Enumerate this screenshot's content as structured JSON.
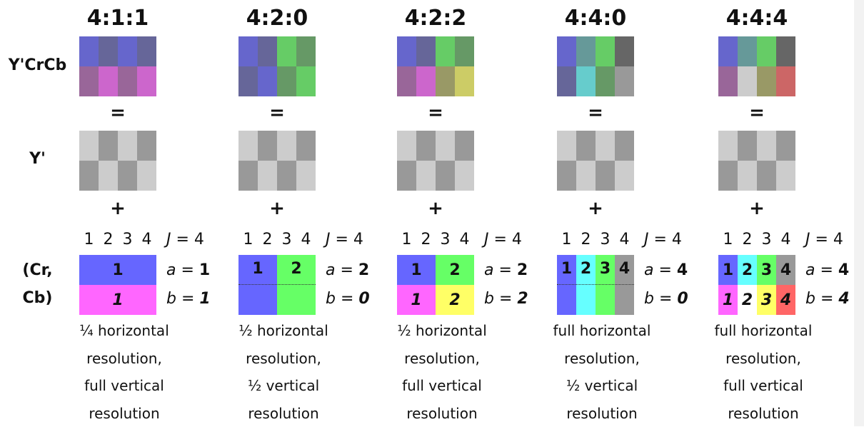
{
  "row_labels": {
    "ycrcb": "Y'CrCb",
    "y": "Y'",
    "crcb_line1": "(Cr,",
    "crcb_line2": "Cb)"
  },
  "symbols": {
    "equals": "=",
    "plus": "+"
  },
  "column_numbers": [
    "1",
    "2",
    "3",
    "4"
  ],
  "labels": {
    "J": "J",
    "a": "a",
    "b": "b",
    "eq": " = "
  },
  "colors": {
    "luma_light": "#cccccc",
    "luma_dark": "#999999",
    "luma_pattern": [
      "light",
      "dark",
      "light",
      "dark",
      "dark",
      "light",
      "dark",
      "light"
    ]
  },
  "schemes": [
    {
      "title": "4:1:1",
      "ycrcb": [
        "#6666cc",
        "#666699",
        "#6666cc",
        "#666699",
        "#996699",
        "#cc66cc",
        "#996699",
        "#cc66cc"
      ],
      "J": "4",
      "a": "1",
      "b": "1",
      "chroma": [
        {
          "text": "1",
          "color": "#6666ff",
          "italic": false,
          "col": 0,
          "span": 4,
          "row": 0
        },
        {
          "text": "1",
          "color": "#ff66ff",
          "italic": true,
          "col": 0,
          "span": 4,
          "row": 1
        }
      ],
      "dotted": false,
      "caption": [
        "¼ horizontal",
        "resolution,",
        "full vertical",
        "resolution"
      ]
    },
    {
      "title": "4:2:0",
      "ycrcb": [
        "#6666cc",
        "#666699",
        "#66cc66",
        "#669966",
        "#666699",
        "#6666cc",
        "#669966",
        "#66cc66"
      ],
      "J": "4",
      "a": "2",
      "b": "0",
      "chroma": [
        {
          "text": "1",
          "color": "#6666ff",
          "italic": false,
          "col": 0,
          "span": 2,
          "row": "both"
        },
        {
          "text": "2",
          "color": "#66ff66",
          "italic": false,
          "col": 2,
          "span": 2,
          "row": "both"
        }
      ],
      "dotted": true,
      "caption": [
        "½ horizontal",
        "resolution,",
        "½ vertical",
        "resolution"
      ]
    },
    {
      "title": "4:2:2",
      "ycrcb": [
        "#6666cc",
        "#666699",
        "#66cc66",
        "#669966",
        "#996699",
        "#cc66cc",
        "#999966",
        "#cccc66"
      ],
      "J": "4",
      "a": "2",
      "b": "2",
      "chroma": [
        {
          "text": "1",
          "color": "#6666ff",
          "italic": false,
          "col": 0,
          "span": 2,
          "row": 0
        },
        {
          "text": "2",
          "color": "#66ff66",
          "italic": false,
          "col": 2,
          "span": 2,
          "row": 0
        },
        {
          "text": "1",
          "color": "#ff66ff",
          "italic": true,
          "col": 0,
          "span": 2,
          "row": 1
        },
        {
          "text": "2",
          "color": "#ffff66",
          "italic": true,
          "col": 2,
          "span": 2,
          "row": 1
        }
      ],
      "dotted": false,
      "caption": [
        "½ horizontal",
        "resolution,",
        "full vertical",
        "resolution"
      ]
    },
    {
      "title": "4:4:0",
      "ycrcb": [
        "#6666cc",
        "#669999",
        "#66cc66",
        "#666666",
        "#666699",
        "#66cccc",
        "#669966",
        "#999999"
      ],
      "J": "4",
      "a": "4",
      "b": "0",
      "chroma": [
        {
          "text": "1",
          "color": "#6666ff",
          "italic": false,
          "col": 0,
          "span": 1,
          "row": "both"
        },
        {
          "text": "2",
          "color": "#66ffff",
          "italic": false,
          "col": 1,
          "span": 1,
          "row": "both"
        },
        {
          "text": "3",
          "color": "#66ff66",
          "italic": false,
          "col": 2,
          "span": 1,
          "row": "both"
        },
        {
          "text": "4",
          "color": "#999999",
          "italic": false,
          "col": 3,
          "span": 1,
          "row": "both"
        }
      ],
      "dotted": true,
      "caption": [
        "full horizontal",
        "resolution,",
        "½ vertical",
        "resolution"
      ]
    },
    {
      "title": "4:4:4",
      "ycrcb": [
        "#6666cc",
        "#669999",
        "#66cc66",
        "#666666",
        "#996699",
        "#cccccc",
        "#999966",
        "#cc6666"
      ],
      "J": "4",
      "a": "4",
      "b": "4",
      "chroma": [
        {
          "text": "1",
          "color": "#6666ff",
          "italic": false,
          "col": 0,
          "span": 1,
          "row": 0
        },
        {
          "text": "2",
          "color": "#66ffff",
          "italic": false,
          "col": 1,
          "span": 1,
          "row": 0
        },
        {
          "text": "3",
          "color": "#66ff66",
          "italic": false,
          "col": 2,
          "span": 1,
          "row": 0
        },
        {
          "text": "4",
          "color": "#999999",
          "italic": false,
          "col": 3,
          "span": 1,
          "row": 0
        },
        {
          "text": "1",
          "color": "#ff66ff",
          "italic": true,
          "col": 0,
          "span": 1,
          "row": 1
        },
        {
          "text": "2",
          "color": "#ffffff",
          "italic": true,
          "col": 1,
          "span": 1,
          "row": 1
        },
        {
          "text": "3",
          "color": "#ffff66",
          "italic": true,
          "col": 2,
          "span": 1,
          "row": 1
        },
        {
          "text": "4",
          "color": "#ff6666",
          "italic": true,
          "col": 3,
          "span": 1,
          "row": 1
        }
      ],
      "dotted": false,
      "caption": [
        "full horizontal",
        "resolution,",
        "full vertical",
        "resolution"
      ]
    }
  ]
}
